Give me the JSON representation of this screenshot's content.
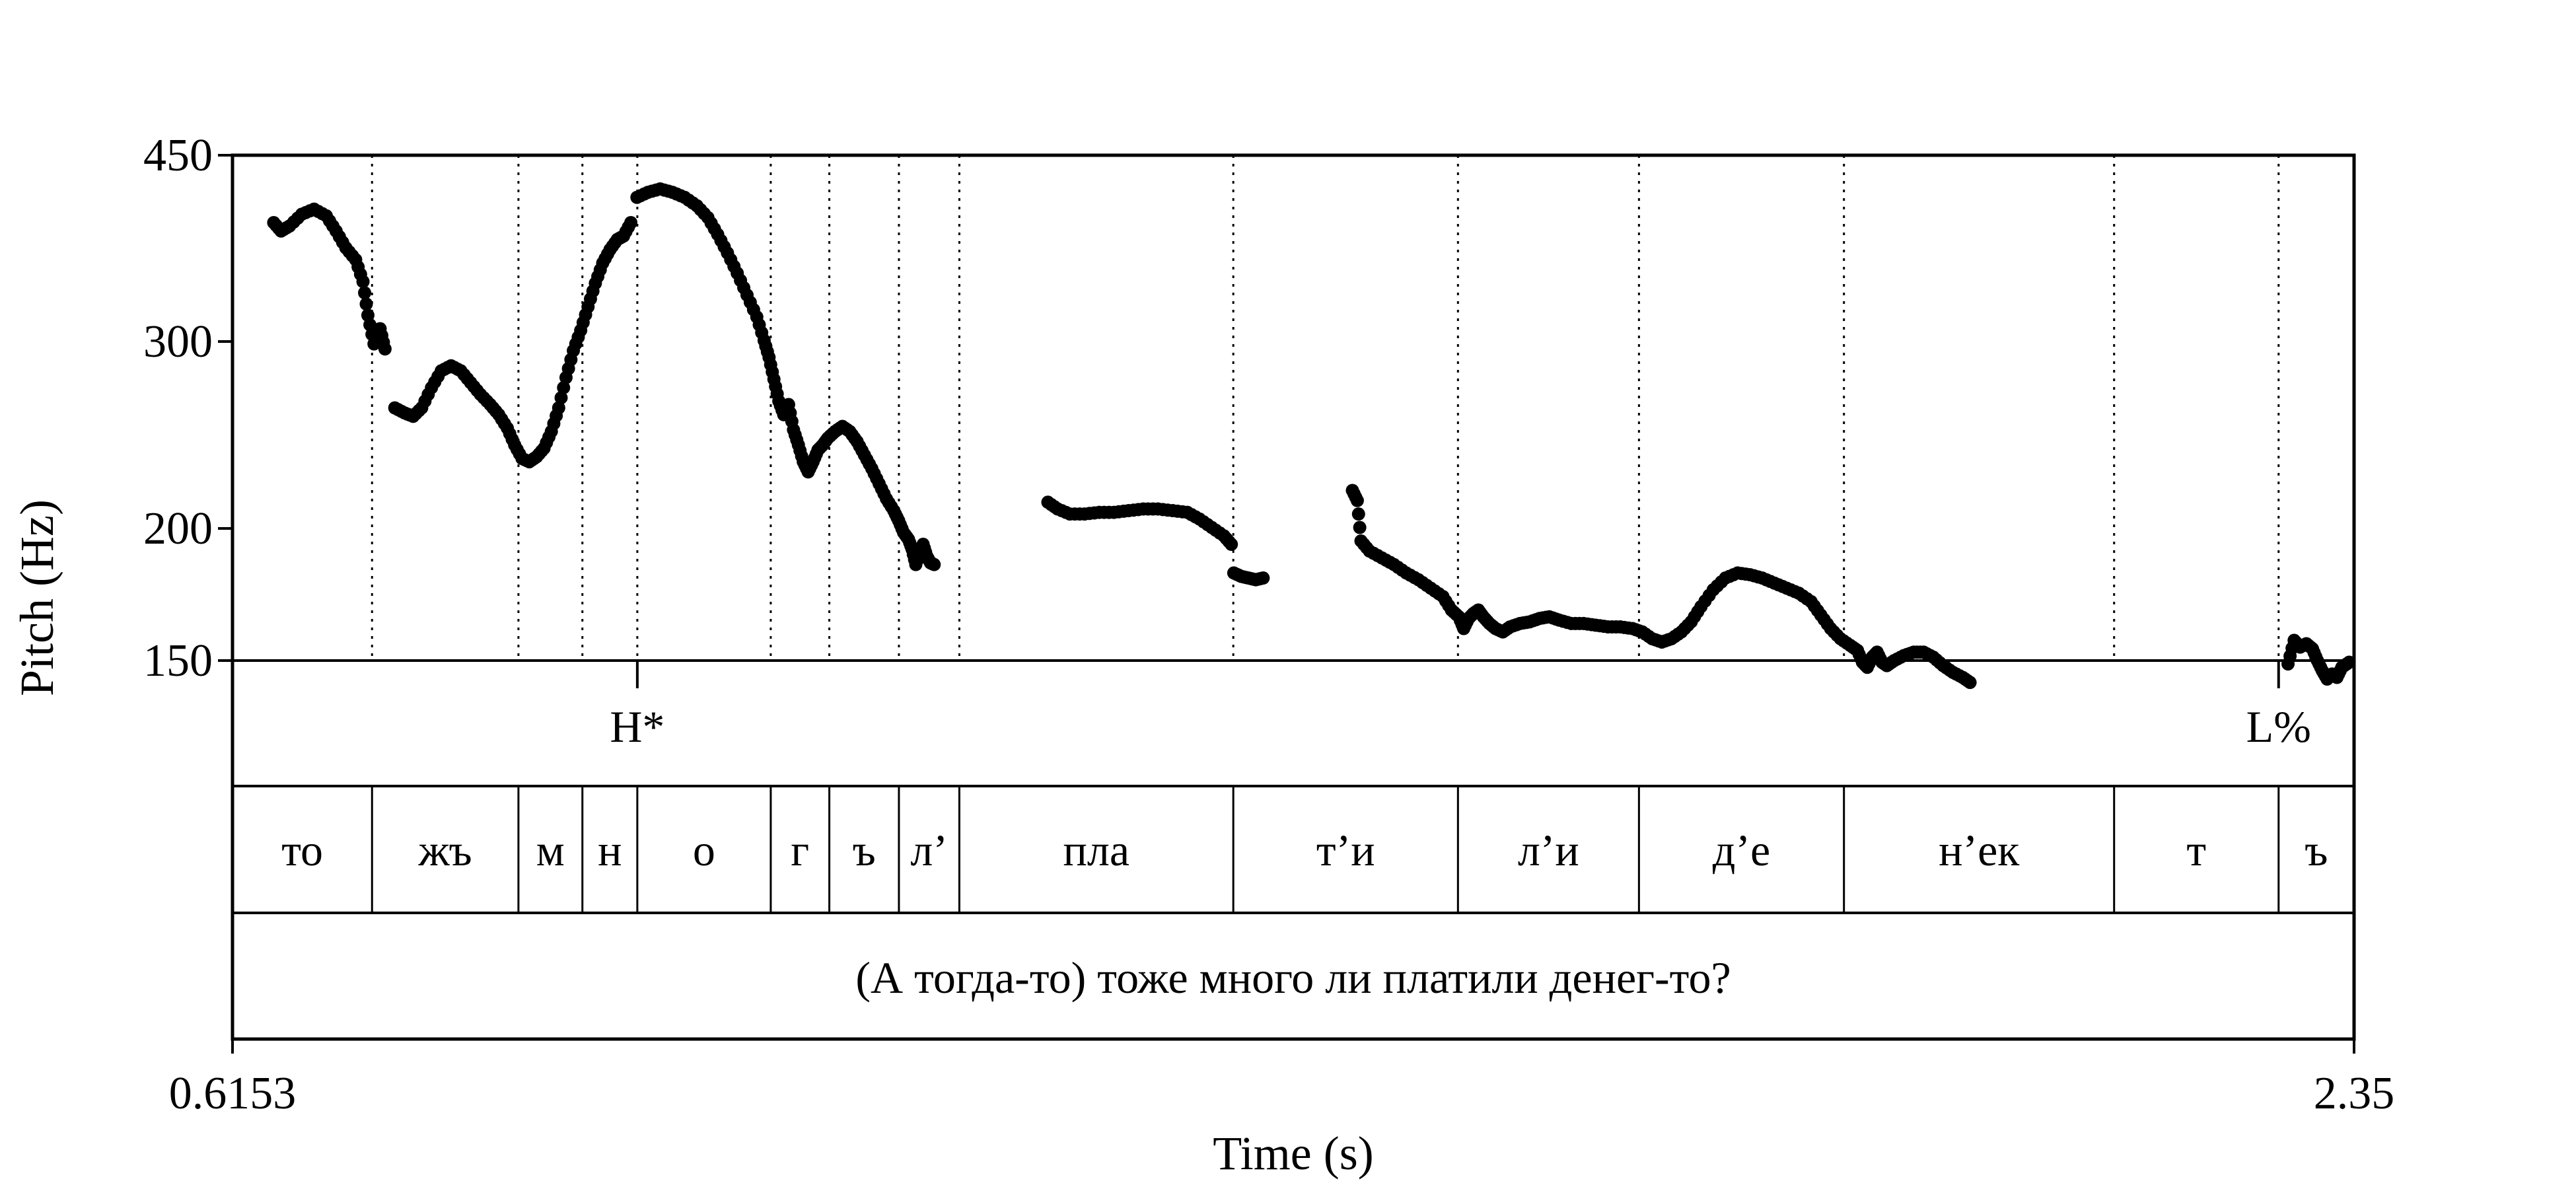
{
  "chart_data": {
    "type": "scatter",
    "ylabel": "Pitch (Hz)",
    "xlabel": "Time (s)",
    "xlim": [
      0.6153,
      2.35
    ],
    "ylim": [
      150,
      450
    ],
    "y_ticks": [
      450,
      300,
      200,
      150
    ],
    "x_tick_labels": [
      "0.6153",
      "2.35"
    ],
    "boundaries": [
      0.7294,
      0.8491,
      0.9014,
      0.9463,
      1.0554,
      1.1033,
      1.1602,
      1.2096,
      1.4336,
      1.6173,
      1.7653,
      1.9329,
      2.1538,
      2.2883
    ],
    "tones": [
      {
        "label": "H*",
        "t": 0.9463
      },
      {
        "label": "L%",
        "t": 2.2883
      }
    ],
    "segments": [
      {
        "label": "то",
        "start": 0.6153,
        "end": 0.7294
      },
      {
        "label": "жъ",
        "start": 0.7294,
        "end": 0.8491
      },
      {
        "label": "м",
        "start": 0.8491,
        "end": 0.9014
      },
      {
        "label": "н",
        "start": 0.9014,
        "end": 0.9463
      },
      {
        "label": "о",
        "start": 0.9463,
        "end": 1.0554
      },
      {
        "label": "г",
        "start": 1.0554,
        "end": 1.1033
      },
      {
        "label": "ъ",
        "start": 1.1033,
        "end": 1.1602
      },
      {
        "label": "л’",
        "start": 1.1602,
        "end": 1.2096
      },
      {
        "label": "пла",
        "start": 1.2096,
        "end": 1.4336
      },
      {
        "label": "т’и",
        "start": 1.4336,
        "end": 1.6173
      },
      {
        "label": "л’и",
        "start": 1.6173,
        "end": 1.7653
      },
      {
        "label": "д’е",
        "start": 1.7653,
        "end": 1.9329
      },
      {
        "label": "н’ек",
        "start": 1.9329,
        "end": 2.1538
      },
      {
        "label": "т",
        "start": 2.1538,
        "end": 2.2883
      },
      {
        "label": "ъ",
        "start": 2.2883,
        "end": 2.35
      }
    ],
    "sentence": "(А тогда-то) тоже много ли платили денег-то?",
    "pitch_runs": [
      [
        [
          0.649,
          410
        ],
        [
          0.655,
          405
        ],
        [
          0.662,
          408
        ],
        [
          0.672,
          415
        ],
        [
          0.682,
          418
        ],
        [
          0.692,
          414
        ],
        [
          0.7,
          405
        ],
        [
          0.708,
          395
        ],
        [
          0.716,
          388
        ],
        [
          0.722,
          375
        ],
        [
          0.726,
          355
        ],
        [
          0.731,
          338
        ],
        [
          0.736,
          347
        ],
        [
          0.74,
          335
        ]
      ],
      [
        [
          0.748,
          300
        ],
        [
          0.756,
          297
        ],
        [
          0.763,
          295
        ],
        [
          0.77,
          300
        ],
        [
          0.778,
          312
        ],
        [
          0.786,
          322
        ],
        [
          0.794,
          325
        ],
        [
          0.802,
          322
        ],
        [
          0.81,
          315
        ],
        [
          0.818,
          308
        ],
        [
          0.826,
          302
        ],
        [
          0.833,
          296
        ],
        [
          0.84,
          288
        ],
        [
          0.846,
          278
        ],
        [
          0.852,
          270
        ],
        [
          0.858,
          268
        ],
        [
          0.864,
          271
        ],
        [
          0.87,
          276
        ],
        [
          0.876,
          286
        ],
        [
          0.882,
          300
        ],
        [
          0.888,
          318
        ],
        [
          0.894,
          334
        ],
        [
          0.9,
          346
        ],
        [
          0.906,
          360
        ],
        [
          0.912,
          374
        ],
        [
          0.918,
          386
        ],
        [
          0.924,
          394
        ],
        [
          0.93,
          400
        ],
        [
          0.935,
          402
        ],
        [
          0.941,
          410
        ]
      ],
      [
        [
          0.946,
          425
        ],
        [
          0.955,
          428
        ],
        [
          0.965,
          430
        ],
        [
          0.975,
          428
        ],
        [
          0.985,
          425
        ],
        [
          0.995,
          420
        ],
        [
          1.004,
          413
        ],
        [
          1.012,
          403
        ],
        [
          1.02,
          392
        ],
        [
          1.028,
          380
        ],
        [
          1.036,
          367
        ],
        [
          1.044,
          354
        ],
        [
          1.05,
          340
        ],
        [
          1.054,
          330
        ],
        [
          1.058,
          317
        ],
        [
          1.062,
          304
        ],
        [
          1.066,
          296
        ],
        [
          1.07,
          302
        ],
        [
          1.074,
          287
        ],
        [
          1.078,
          278
        ],
        [
          1.082,
          268
        ],
        [
          1.086,
          262
        ],
        [
          1.09,
          268
        ],
        [
          1.094,
          275
        ],
        [
          1.098,
          278
        ],
        [
          1.102,
          282
        ],
        [
          1.108,
          286
        ],
        [
          1.114,
          289
        ],
        [
          1.12,
          286
        ],
        [
          1.126,
          280
        ],
        [
          1.132,
          272
        ],
        [
          1.138,
          264
        ],
        [
          1.144,
          255
        ],
        [
          1.15,
          246
        ],
        [
          1.156,
          239
        ],
        [
          1.16,
          233
        ],
        [
          1.164,
          226
        ],
        [
          1.168,
          222
        ],
        [
          1.171,
          216
        ],
        [
          1.174,
          207
        ],
        [
          1.177,
          214
        ],
        [
          1.18,
          219
        ],
        [
          1.183,
          212
        ],
        [
          1.186,
          208
        ],
        [
          1.189,
          207
        ]
      ],
      [
        [
          1.282,
          244
        ],
        [
          1.29,
          240
        ],
        [
          1.3,
          237
        ],
        [
          1.312,
          237
        ],
        [
          1.324,
          238
        ],
        [
          1.336,
          238
        ],
        [
          1.348,
          239
        ],
        [
          1.36,
          240
        ],
        [
          1.372,
          240
        ],
        [
          1.384,
          239
        ],
        [
          1.396,
          238
        ],
        [
          1.406,
          234
        ],
        [
          1.416,
          229
        ],
        [
          1.426,
          224
        ],
        [
          1.432,
          219
        ]
      ],
      [
        [
          1.434,
          202
        ],
        [
          1.44,
          200
        ],
        [
          1.446,
          199
        ],
        [
          1.452,
          198
        ],
        [
          1.458,
          199
        ]
      ],
      [
        [
          1.531,
          251
        ],
        [
          1.535,
          245
        ],
        [
          1.538,
          221
        ],
        [
          1.545,
          215
        ],
        [
          1.555,
          211
        ],
        [
          1.565,
          207
        ],
        [
          1.575,
          202
        ],
        [
          1.585,
          198
        ],
        [
          1.595,
          193
        ],
        [
          1.605,
          188
        ],
        [
          1.612,
          180
        ],
        [
          1.618,
          176
        ],
        [
          1.622,
          169
        ],
        [
          1.626,
          175
        ],
        [
          1.63,
          178
        ],
        [
          1.634,
          180
        ],
        [
          1.638,
          176
        ],
        [
          1.643,
          172
        ],
        [
          1.648,
          169
        ],
        [
          1.654,
          167
        ],
        [
          1.66,
          170
        ],
        [
          1.668,
          172
        ],
        [
          1.676,
          173
        ],
        [
          1.684,
          175
        ],
        [
          1.692,
          176
        ],
        [
          1.7,
          174
        ],
        [
          1.71,
          172
        ],
        [
          1.72,
          172
        ],
        [
          1.73,
          171
        ],
        [
          1.74,
          170
        ],
        [
          1.75,
          170
        ],
        [
          1.76,
          169
        ],
        [
          1.768,
          167
        ],
        [
          1.776,
          163
        ],
        [
          1.784,
          161
        ],
        [
          1.792,
          163
        ],
        [
          1.8,
          167
        ],
        [
          1.808,
          173
        ],
        [
          1.816,
          182
        ],
        [
          1.826,
          192
        ],
        [
          1.836,
          199
        ],
        [
          1.846,
          202
        ],
        [
          1.856,
          201
        ],
        [
          1.866,
          199
        ],
        [
          1.876,
          196
        ],
        [
          1.886,
          193
        ],
        [
          1.896,
          190
        ],
        [
          1.906,
          185
        ],
        [
          1.914,
          177
        ],
        [
          1.922,
          169
        ],
        [
          1.93,
          163
        ],
        [
          1.938,
          159
        ],
        [
          1.944,
          156
        ],
        [
          1.948,
          149
        ],
        [
          1.952,
          146
        ],
        [
          1.956,
          152
        ],
        [
          1.96,
          155
        ],
        [
          1.964,
          149
        ],
        [
          1.968,
          147
        ],
        [
          1.974,
          150
        ],
        [
          1.982,
          153
        ],
        [
          1.99,
          155
        ],
        [
          1.998,
          155
        ],
        [
          2.006,
          152
        ],
        [
          2.014,
          147
        ],
        [
          2.022,
          143
        ],
        [
          2.03,
          140
        ],
        [
          2.036,
          137
        ]
      ],
      [
        [
          2.296,
          148
        ],
        [
          2.301,
          162
        ],
        [
          2.306,
          158
        ],
        [
          2.311,
          160
        ],
        [
          2.316,
          157
        ],
        [
          2.32,
          150
        ],
        [
          2.324,
          144
        ],
        [
          2.328,
          139
        ],
        [
          2.332,
          142
        ],
        [
          2.336,
          140
        ],
        [
          2.34,
          146
        ],
        [
          2.346,
          149
        ]
      ]
    ]
  }
}
